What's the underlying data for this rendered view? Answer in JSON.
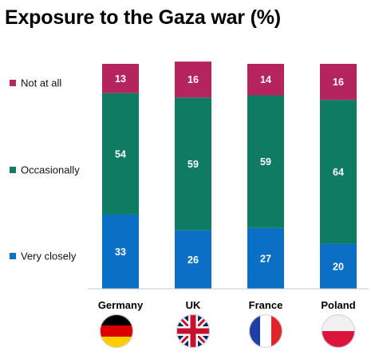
{
  "chart_data": {
    "type": "bar",
    "stacked": true,
    "title": "Exposure to the Gaza war (%)",
    "categories": [
      "Germany",
      "UK",
      "France",
      "Poland"
    ],
    "series": [
      {
        "name": "Very closely",
        "values": [
          33,
          26,
          27,
          20
        ],
        "color": "#0c6fc6"
      },
      {
        "name": "Occasionally",
        "values": [
          54,
          59,
          59,
          64
        ],
        "color": "#0f7b63"
      },
      {
        "name": "Not at all",
        "values": [
          13,
          16,
          14,
          16
        ],
        "color": "#b5245c"
      }
    ],
    "ylim": [
      0,
      100
    ],
    "grid": false,
    "legend_position": "left",
    "flags": [
      {
        "country": "Germany",
        "icon": "germany-flag-icon"
      },
      {
        "country": "UK",
        "icon": "uk-flag-icon"
      },
      {
        "country": "France",
        "icon": "france-flag-icon"
      },
      {
        "country": "Poland",
        "icon": "poland-flag-icon"
      }
    ]
  }
}
